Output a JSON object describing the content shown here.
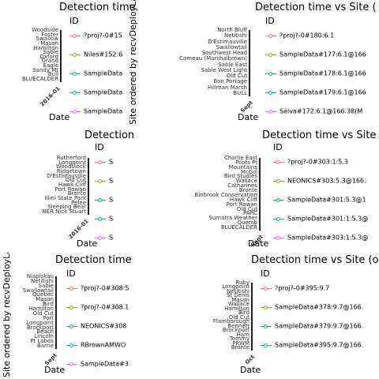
{
  "chart_data": [
    {
      "type": "scatter",
      "title": "Detection time",
      "xlabel": "Date",
      "ylabel": "",
      "legend_title": "ID",
      "legend": [
        "?proj?-0#15",
        "Niles#152:6",
        "SampleData",
        "SampleData",
        "SampleData"
      ],
      "sites": [
        "Woodside",
        "Foster",
        "Swallow",
        "Mason",
        "Hamilton",
        "Sable",
        "Oxford",
        "Grand",
        "Eagle",
        "Sandy Mt",
        "Bull",
        "BLUECALDER"
      ],
      "x_ticks": [
        "2016-01"
      ]
    },
    {
      "type": "scatter",
      "title": "Detection time vs Site (",
      "xlabel": "Date",
      "ylabel": "Site ordered by recvDeployLat",
      "legend_title": "ID",
      "legend": [
        "?proj?-0#180:6.1",
        "SampleData#177:6.1@166",
        "SampleData#178:6.1@166",
        "SampleData#179:6.1@166",
        "Selva#172:6.1@166.38(M"
      ],
      "sites": [
        "North Bluff",
        "Netitishi",
        "D'Estimauville",
        "Swallowtail",
        "Southwest Head",
        "Comeau (Marshalbrown)",
        "Sable East",
        "Sable West Light",
        "Old Cut",
        "Bon Portage",
        "Hillman Marsh",
        "BULL"
      ],
      "x_ticks": [
        "Sept"
      ]
    },
    {
      "type": "scatter",
      "title": "Detection",
      "xlabel": "Date",
      "ylabel": "",
      "legend_title": "ID",
      "legend": [
        "S",
        "S",
        "S",
        "S",
        "S"
      ],
      "sites": [
        "Rutherford",
        "Longpoint",
        "Woodstock",
        "Ridgetown",
        "D'Estimauville",
        "Old Cut",
        "Hawk Cliff",
        "Port Rowan",
        "Bronte",
        "Illini State Park",
        "Pelee",
        "Sleeping Bear",
        "NER Nick Stuart"
      ],
      "x_ticks": [
        "2016-01"
      ]
    },
    {
      "type": "scatter",
      "title": "Detection time vs Site",
      "xlabel": "Date",
      "ylabel": "",
      "legend_title": "ID",
      "legend": [
        "?proj?-0#303:1:5.3",
        "NEONICS#303:5.3@166.",
        "SampleData#301:5.3@1",
        "SampleData#301:1:5.3@",
        "SampleData#303:1:5.3@"
      ],
      "sites": [
        "Charlie East",
        "Pilots Pt",
        "Mountains",
        "McGill",
        "Bird Studies",
        "Wallace",
        "Catharines",
        "Bronte",
        "Binbrook Conservation",
        "Hawk Cliff",
        "Port Rowan",
        "Old Cut",
        "PARC",
        "Sumatra Weather",
        "Quemb",
        "BLUECALDER"
      ],
      "x_ticks": [
        "Sept"
      ]
    },
    {
      "type": "scatter",
      "title": "Detection time",
      "xlabel": "Date",
      "ylabel": "Site ordered by recvDeployLat",
      "legend_title": "ID",
      "legend": [
        "?proj?-0#308:5",
        "?proj?-0#308.1",
        "NEONICS#308",
        "RBrownAMWO",
        "SampleData#3"
      ],
      "sites": [
        "Niapiskau",
        "Netitishi",
        "Sable",
        "Swallowtail",
        "Quebec",
        "Mason",
        "Bird",
        "Hamilton",
        "Old Cut",
        "Port",
        "Longpoint",
        "Brockport",
        "Beach",
        "Lincoln",
        "Pt Lobos",
        "Barrie"
      ],
      "x_ticks": [
        "Sept"
      ]
    },
    {
      "type": "scatter",
      "title": "Detection time vs Site (o",
      "xlabel": "Date",
      "ylabel": "",
      "legend_title": "ID",
      "legend": [
        "?proj?-0#395:9.7",
        "SampleData#378:9.7@166.",
        "SampleData#379:9.7@166.",
        "SampleData#395:9.7@166."
      ],
      "sites": [
        "Ruby",
        "Longpoint",
        "Netitishi",
        "St Denis",
        "Mason",
        "Wallace",
        "Hamilton",
        "Bird",
        "Old Cut",
        "Flamborough",
        "Bennett",
        "Brockport",
        "Ham",
        "Tommy",
        "PRWM",
        "Bronte"
      ],
      "x_ticks": [
        "Oct"
      ]
    }
  ]
}
